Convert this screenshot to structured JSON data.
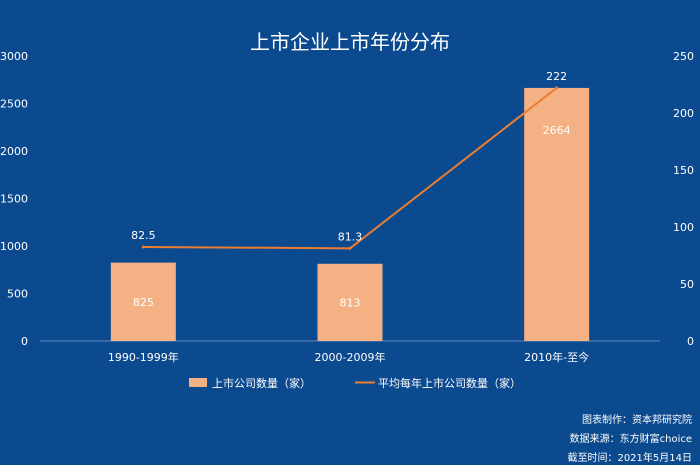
{
  "chart_data": {
    "type": "bar",
    "title": "上市企业上市年份分布",
    "categories": [
      "1990-1999年",
      "2000-2009年",
      "2010年-至今"
    ],
    "series": [
      {
        "name": "上市公司数量（家）",
        "type": "bar",
        "axis": "left",
        "values": [
          825,
          813,
          2664
        ]
      },
      {
        "name": "平均每年上市公司数量（家）",
        "type": "line",
        "axis": "right",
        "values": [
          82.5,
          81.3,
          222
        ]
      }
    ],
    "ylim": [
      0,
      3000
    ],
    "y_ticks": [
      0,
      500,
      1000,
      1500,
      2000,
      2500,
      3000
    ],
    "y2lim": [
      0,
      250
    ],
    "y2_ticks": [
      0,
      50,
      100,
      150,
      200,
      250
    ],
    "grid": false,
    "legend_position": "bottom"
  },
  "colors": {
    "background": "#0b4a8f",
    "bar": "#f4b183",
    "line": "#ed7d31",
    "text": "#ffffff"
  },
  "credits": [
    "图表制作：资本邦研究院",
    "数据来源：东方财富choice",
    "截至时间：2021年5月14日"
  ]
}
